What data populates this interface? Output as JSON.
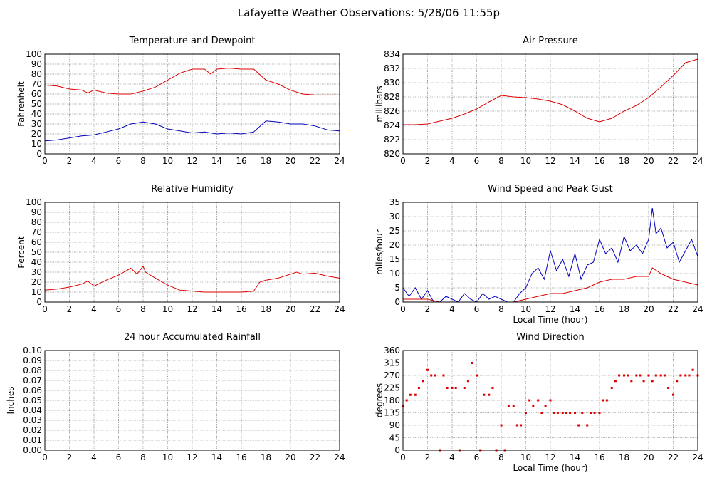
{
  "page_title": "Lafayette Weather Observations: 5/28/06 11:55p",
  "colors": {
    "red": "#dd0000",
    "blue": "#0000bb"
  },
  "chart_data": [
    {
      "id": "temp",
      "type": "line",
      "title": "Temperature and Dewpoint",
      "xlabel": "",
      "ylabel": "Fahrenheit",
      "xlim": [
        0,
        24
      ],
      "ylim": [
        0,
        100
      ],
      "xticks": [
        0,
        2,
        4,
        6,
        8,
        10,
        12,
        14,
        16,
        18,
        20,
        22,
        24
      ],
      "yticks": [
        0,
        10,
        20,
        30,
        40,
        50,
        60,
        70,
        80,
        90,
        100
      ],
      "grid": true,
      "series": [
        {
          "color": "red",
          "x": [
            0,
            1,
            2,
            3,
            3.5,
            4,
            5,
            6,
            7,
            8,
            9,
            10,
            11,
            12,
            13,
            13.5,
            14,
            15,
            16,
            17,
            18,
            19,
            20,
            21,
            22,
            23,
            24
          ],
          "y": [
            69,
            68,
            65,
            64,
            61,
            64,
            61,
            60,
            60,
            63,
            67,
            74,
            81,
            85,
            85,
            80,
            85,
            86,
            85,
            85,
            74,
            70,
            64,
            60,
            59,
            59,
            59
          ]
        },
        {
          "color": "blue",
          "x": [
            0,
            1,
            2,
            3,
            4,
            5,
            6,
            7,
            8,
            9,
            10,
            11,
            12,
            13,
            14,
            15,
            16,
            17,
            18,
            19,
            20,
            21,
            22,
            23,
            24
          ],
          "y": [
            13,
            14,
            16,
            18,
            19,
            22,
            25,
            30,
            32,
            30,
            25,
            23,
            21,
            22,
            20,
            21,
            20,
            22,
            33,
            32,
            30,
            30,
            28,
            24,
            23
          ]
        }
      ]
    },
    {
      "id": "pressure",
      "type": "line",
      "title": "Air Pressure",
      "xlabel": "",
      "ylabel": "millibars",
      "xlim": [
        0,
        24
      ],
      "ylim": [
        820,
        834
      ],
      "xticks": [
        0,
        2,
        4,
        6,
        8,
        10,
        12,
        14,
        16,
        18,
        20,
        22,
        24
      ],
      "yticks": [
        820,
        822,
        824,
        826,
        828,
        830,
        832,
        834
      ],
      "grid": true,
      "series": [
        {
          "color": "red",
          "x": [
            0,
            1,
            2,
            3,
            4,
            5,
            6,
            7,
            8,
            9,
            10,
            11,
            12,
            13,
            14,
            15,
            16,
            17,
            18,
            19,
            20,
            21,
            22,
            23,
            24
          ],
          "y": [
            824.1,
            824.1,
            824.2,
            824.6,
            825.0,
            825.6,
            826.3,
            827.3,
            828.2,
            828.0,
            827.9,
            827.7,
            827.4,
            826.9,
            826.0,
            825.0,
            824.5,
            825.0,
            826.0,
            826.8,
            827.9,
            829.4,
            831.0,
            832.8,
            833.3
          ]
        }
      ]
    },
    {
      "id": "humidity",
      "type": "line",
      "title": "Relative Humidity",
      "xlabel": "",
      "ylabel": "Percent",
      "xlim": [
        0,
        24
      ],
      "ylim": [
        0,
        100
      ],
      "xticks": [
        0,
        2,
        4,
        6,
        8,
        10,
        12,
        14,
        16,
        18,
        20,
        22,
        24
      ],
      "yticks": [
        0,
        10,
        20,
        30,
        40,
        50,
        60,
        70,
        80,
        90,
        100
      ],
      "grid": true,
      "series": [
        {
          "color": "red",
          "x": [
            0,
            1,
            2,
            3,
            3.5,
            4,
            5,
            6,
            7,
            7.5,
            8,
            8.2,
            9,
            10,
            11,
            12,
            13,
            14,
            15,
            16,
            17,
            17.5,
            18,
            19,
            20,
            20.5,
            21,
            22,
            23,
            24
          ],
          "y": [
            12,
            13,
            15,
            18,
            21,
            16,
            22,
            27,
            34,
            28,
            36,
            30,
            24,
            17,
            12,
            11,
            10,
            10,
            10,
            10,
            11,
            20,
            22,
            24,
            28,
            30,
            28,
            29,
            26,
            24
          ]
        }
      ]
    },
    {
      "id": "wind",
      "type": "line",
      "title": "Wind Speed and Peak Gust",
      "xlabel": "Local Time (hour)",
      "ylabel": "miles/hour",
      "xlim": [
        0,
        24
      ],
      "ylim": [
        0,
        35
      ],
      "xticks": [
        0,
        2,
        4,
        6,
        8,
        10,
        12,
        14,
        16,
        18,
        20,
        22,
        24
      ],
      "yticks": [
        0,
        5,
        10,
        15,
        20,
        25,
        30,
        35
      ],
      "grid": true,
      "series": [
        {
          "color": "blue",
          "x": [
            0,
            0.5,
            1,
            1.5,
            2,
            2.5,
            3,
            3.5,
            4,
            4.5,
            5,
            5.5,
            6,
            6.5,
            7,
            7.5,
            8,
            8.5,
            9,
            9.5,
            10,
            10.5,
            11,
            11.5,
            12,
            12.5,
            13,
            13.5,
            14,
            14.5,
            15,
            15.5,
            16,
            16.5,
            17,
            17.5,
            18,
            18.5,
            19,
            19.5,
            20,
            20.3,
            20.6,
            21,
            21.5,
            22,
            22.5,
            23,
            23.5,
            24
          ],
          "y": [
            5,
            2,
            5,
            1,
            4,
            0,
            0,
            2,
            1,
            0,
            3,
            1,
            0,
            3,
            1,
            2,
            1,
            0,
            0,
            3,
            5,
            10,
            12,
            8,
            18,
            11,
            15,
            9,
            17,
            8,
            13,
            14,
            22,
            17,
            19,
            14,
            23,
            18,
            20,
            17,
            22,
            33,
            24,
            26,
            19,
            21,
            14,
            18,
            22,
            16
          ]
        },
        {
          "color": "red",
          "x": [
            0,
            1,
            2,
            3,
            4,
            5,
            6,
            7,
            8,
            9,
            10,
            11,
            12,
            13,
            14,
            15,
            16,
            17,
            18,
            19,
            20,
            20.3,
            21,
            22,
            23,
            24
          ],
          "y": [
            1,
            1,
            1,
            0,
            0,
            0,
            0,
            0,
            0,
            0,
            1,
            2,
            3,
            3,
            4,
            5,
            7,
            8,
            8,
            9,
            9,
            12,
            10,
            8,
            7,
            6
          ]
        }
      ]
    },
    {
      "id": "rain",
      "type": "line",
      "title": "24 hour Accumulated Rainfall",
      "xlabel": "",
      "ylabel": "Inches",
      "xlim": [
        0,
        24
      ],
      "ylim": [
        0,
        0.1
      ],
      "xticks": [
        0,
        2,
        4,
        6,
        8,
        10,
        12,
        14,
        16,
        18,
        20,
        22,
        24
      ],
      "yticks": [
        0,
        0.01,
        0.02,
        0.03,
        0.04,
        0.05,
        0.06,
        0.07,
        0.08,
        0.09,
        0.1
      ],
      "ytick_labels": [
        "0.00",
        "0.01",
        "0.02",
        "0.03",
        "0.04",
        "0.05",
        "0.06",
        "0.07",
        "0.08",
        "0.09",
        "0.10"
      ],
      "grid": true,
      "series": [
        {
          "color": "red",
          "x": [
            0,
            24
          ],
          "y": [
            0,
            0
          ]
        }
      ]
    },
    {
      "id": "winddir",
      "type": "scatter",
      "title": "Wind Direction",
      "xlabel": "Local Time (hour)",
      "ylabel": "degrees",
      "xlim": [
        0,
        24
      ],
      "ylim": [
        0,
        360
      ],
      "xticks": [
        0,
        2,
        4,
        6,
        8,
        10,
        12,
        14,
        16,
        18,
        20,
        22,
        24
      ],
      "yticks": [
        0,
        45,
        90,
        135,
        180,
        225,
        270,
        315,
        360
      ],
      "grid": true,
      "series": [
        {
          "color": "red",
          "x": [
            0,
            0.3,
            0.6,
            1,
            1.3,
            1.6,
            2,
            2.3,
            2.6,
            3,
            3.3,
            3.6,
            4,
            4.3,
            4.6,
            5,
            5.3,
            5.6,
            6,
            6.3,
            6.6,
            7,
            7.3,
            7.6,
            8,
            8.3,
            8.6,
            9,
            9.3,
            9.6,
            10,
            10.3,
            10.6,
            11,
            11.3,
            11.6,
            12,
            12.3,
            12.6,
            13,
            13.3,
            13.6,
            14,
            14.3,
            14.6,
            15,
            15.3,
            15.6,
            16,
            16.3,
            16.6,
            17,
            17.3,
            17.6,
            18,
            18.3,
            18.6,
            19,
            19.3,
            19.6,
            20,
            20.3,
            20.6,
            21,
            21.3,
            21.6,
            22,
            22.3,
            22.6,
            23,
            23.3,
            23.6,
            24
          ],
          "y": [
            160,
            180,
            200,
            200,
            225,
            250,
            290,
            270,
            270,
            0,
            270,
            225,
            225,
            225,
            0,
            225,
            250,
            315,
            270,
            0,
            200,
            200,
            225,
            0,
            90,
            0,
            160,
            160,
            90,
            90,
            135,
            180,
            160,
            180,
            135,
            160,
            180,
            135,
            135,
            135,
            135,
            135,
            135,
            90,
            135,
            90,
            135,
            135,
            135,
            180,
            180,
            225,
            250,
            270,
            270,
            270,
            250,
            270,
            270,
            250,
            270,
            250,
            270,
            270,
            270,
            225,
            200,
            250,
            270,
            270,
            270,
            290,
            270
          ]
        }
      ]
    }
  ]
}
